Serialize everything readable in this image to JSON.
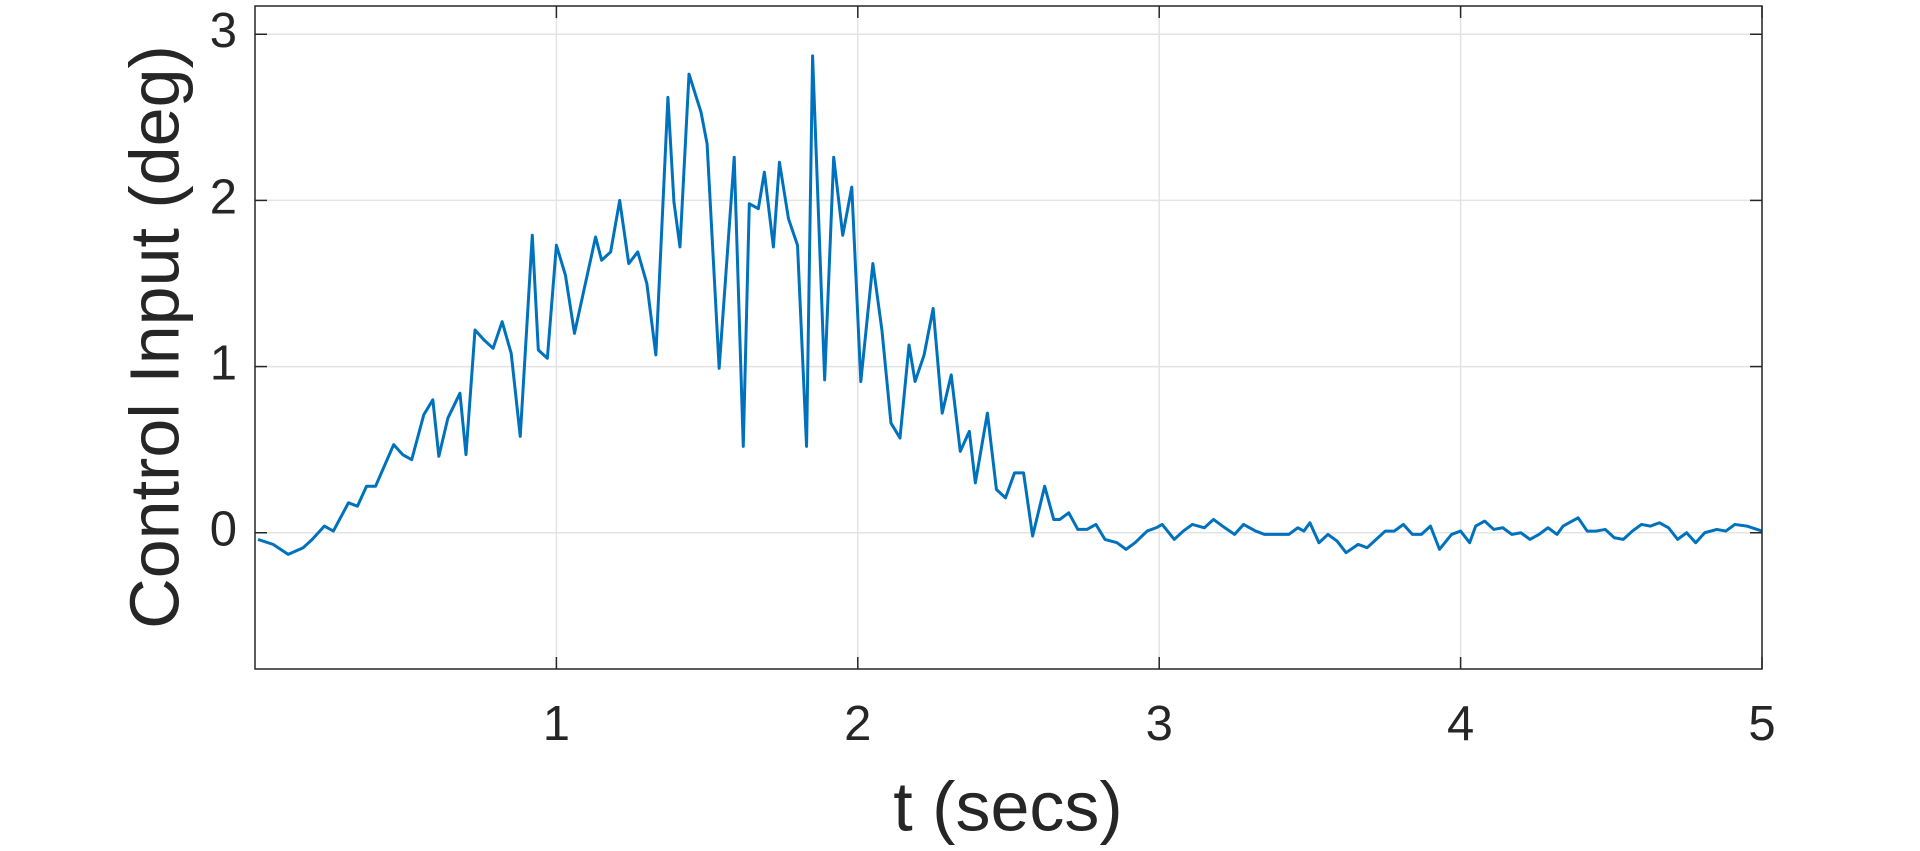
{
  "chart_data": {
    "type": "line",
    "xlabel": "t (secs)",
    "ylabel": "Control Input (deg)",
    "xlim": [
      0,
      5
    ],
    "ylim": [
      -0.82,
      3.17
    ],
    "xticks": [
      1,
      2,
      3,
      4,
      5
    ],
    "yticks": [
      0,
      1,
      2,
      3
    ],
    "grid": true,
    "x": [
      0.01,
      0.06,
      0.11,
      0.16,
      0.19,
      0.23,
      0.26,
      0.31,
      0.34,
      0.37,
      0.4,
      0.46,
      0.49,
      0.52,
      0.56,
      0.59,
      0.61,
      0.64,
      0.68,
      0.7,
      0.73,
      0.76,
      0.79,
      0.82,
      0.85,
      0.88,
      0.92,
      0.94,
      0.97,
      1.0,
      1.03,
      1.06,
      1.13,
      1.15,
      1.18,
      1.21,
      1.24,
      1.27,
      1.3,
      1.33,
      1.37,
      1.39,
      1.41,
      1.44,
      1.48,
      1.5,
      1.54,
      1.59,
      1.62,
      1.64,
      1.67,
      1.69,
      1.72,
      1.74,
      1.77,
      1.8,
      1.83,
      1.85,
      1.89,
      1.92,
      1.95,
      1.98,
      2.01,
      2.05,
      2.08,
      2.11,
      2.14,
      2.17,
      2.19,
      2.22,
      2.25,
      2.28,
      2.31,
      2.34,
      2.37,
      2.39,
      2.43,
      2.46,
      2.49,
      2.52,
      2.55,
      2.58,
      2.62,
      2.65,
      2.67,
      2.7,
      2.73,
      2.76,
      2.79,
      2.82,
      2.86,
      2.89,
      2.92,
      2.96,
      2.99,
      3.01,
      3.05,
      3.08,
      3.11,
      3.15,
      3.18,
      3.21,
      3.25,
      3.28,
      3.32,
      3.35,
      3.39,
      3.43,
      3.46,
      3.48,
      3.5,
      3.53,
      3.56,
      3.59,
      3.62,
      3.66,
      3.69,
      3.72,
      3.75,
      3.78,
      3.81,
      3.84,
      3.87,
      3.9,
      3.93,
      3.97,
      4.0,
      4.03,
      4.05,
      4.08,
      4.11,
      4.14,
      4.17,
      4.2,
      4.23,
      4.26,
      4.29,
      4.32,
      4.34,
      4.39,
      4.42,
      4.45,
      4.48,
      4.51,
      4.54,
      4.57,
      4.6,
      4.63,
      4.66,
      4.69,
      4.72,
      4.75,
      4.78,
      4.81,
      4.85,
      4.88,
      4.91,
      4.95,
      5.0
    ],
    "series": [
      {
        "color": "#0072bd",
        "values": [
          -0.04,
          -0.07,
          -0.13,
          -0.09,
          -0.04,
          0.04,
          0.01,
          0.18,
          0.16,
          0.28,
          0.28,
          0.53,
          0.47,
          0.44,
          0.71,
          0.8,
          0.46,
          0.69,
          0.84,
          0.47,
          1.22,
          1.16,
          1.11,
          1.27,
          1.08,
          0.58,
          1.79,
          1.1,
          1.05,
          1.73,
          1.55,
          1.2,
          1.78,
          1.64,
          1.69,
          2.0,
          1.62,
          1.69,
          1.5,
          1.07,
          2.62,
          1.99,
          1.72,
          2.76,
          2.53,
          2.34,
          0.99,
          2.26,
          0.52,
          1.98,
          1.95,
          2.17,
          1.72,
          2.23,
          1.89,
          1.73,
          0.52,
          2.87,
          0.92,
          2.26,
          1.79,
          2.08,
          0.91,
          1.62,
          1.22,
          0.66,
          0.57,
          1.13,
          0.91,
          1.07,
          1.35,
          0.72,
          0.95,
          0.49,
          0.61,
          0.3,
          0.72,
          0.26,
          0.21,
          0.36,
          0.36,
          -0.02,
          0.28,
          0.08,
          0.08,
          0.12,
          0.02,
          0.02,
          0.05,
          -0.04,
          -0.06,
          -0.1,
          -0.06,
          0.01,
          0.03,
          0.05,
          -0.04,
          0.01,
          0.05,
          0.03,
          0.08,
          0.04,
          -0.01,
          0.05,
          0.01,
          -0.01,
          -0.01,
          -0.01,
          0.03,
          0.01,
          0.06,
          -0.06,
          -0.01,
          -0.05,
          -0.12,
          -0.07,
          -0.09,
          -0.04,
          0.01,
          0.01,
          0.05,
          -0.01,
          -0.01,
          0.04,
          -0.1,
          -0.01,
          0.01,
          -0.06,
          0.04,
          0.07,
          0.02,
          0.03,
          -0.01,
          0.0,
          -0.04,
          -0.01,
          0.03,
          -0.01,
          0.04,
          0.09,
          0.01,
          0.01,
          0.02,
          -0.03,
          -0.04,
          0.01,
          0.05,
          0.04,
          0.06,
          0.03,
          -0.04,
          0.0,
          -0.06,
          0.0,
          0.02,
          0.01,
          0.05,
          0.04,
          0.01
        ]
      }
    ]
  }
}
